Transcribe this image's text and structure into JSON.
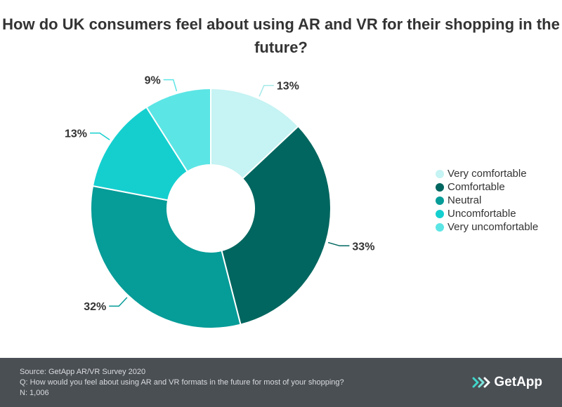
{
  "chart_data": {
    "type": "pie",
    "title": "How do UK consumers feel about using AR and VR for their shopping in the future?",
    "categories": [
      "Very comfortable",
      "Comfortable",
      "Neutral",
      "Uncomfortable",
      "Very uncomfortable"
    ],
    "values": [
      13,
      33,
      32,
      13,
      9
    ],
    "value_labels": [
      "13%",
      "33%",
      "32%",
      "13%",
      "9%"
    ],
    "colors": [
      "#c6f3f3",
      "#00665f",
      "#069c98",
      "#15cfcf",
      "#5ce5e5"
    ],
    "legend": "right",
    "donut": true
  },
  "footer": {
    "source": "Source: GetApp AR/VR Survey 2020",
    "question": "Q: How would you feel about using AR and VR formats in the future for most of your shopping?",
    "n": "N: 1,006"
  },
  "logo": {
    "text": "GetApp",
    "icon": "getapp-chevrons-icon"
  }
}
